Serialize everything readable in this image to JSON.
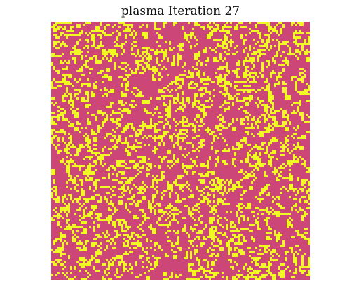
{
  "title": "plasma Iteration 27",
  "colormap": "plasma",
  "iteration": 27,
  "board": {
    "rows": 123,
    "cols": 123,
    "dead_color": "#cc4778",
    "alive_color": "#f0f921",
    "alive_fraction": 0.24
  }
}
